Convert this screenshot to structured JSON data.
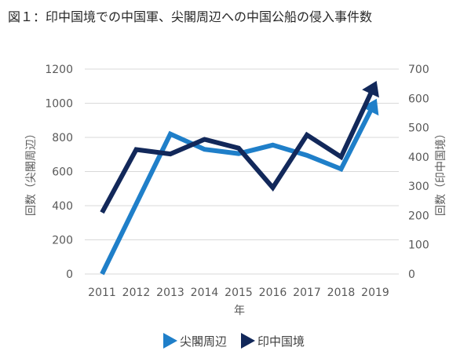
{
  "title": "図１：印中国境での中国軍、尖閣周辺への中国公船の侵入事件数",
  "chart_data": {
    "type": "line",
    "title": "図１：印中国境での中国軍、尖閣周辺への中国公船の侵入事件数",
    "xlabel": "年",
    "ylabel_left": "回数（尖閣周辺）",
    "ylabel_right": "回数（印中国境）",
    "x": [
      "2011",
      "2012",
      "2013",
      "2014",
      "2015",
      "2016",
      "2017",
      "2018",
      "2019"
    ],
    "ylim_left": [
      0,
      1200
    ],
    "ylim_right": [
      0,
      700
    ],
    "yticks_left": [
      "0",
      "200",
      "400",
      "600",
      "800",
      "1000",
      "1200"
    ],
    "yticks_right": [
      "0",
      "100",
      "200",
      "300",
      "400",
      "500",
      "600",
      "700"
    ],
    "grid": true,
    "legend_position": "bottom",
    "series": [
      {
        "name": "尖閣周辺",
        "axis": "left",
        "color": "#1f7fc9",
        "values": [
          0,
          410,
          820,
          730,
          705,
          755,
          695,
          615,
          1010
        ]
      },
      {
        "name": "印中国境",
        "axis": "right",
        "color": "#12285a",
        "values": [
          210,
          425,
          410,
          460,
          430,
          295,
          475,
          400,
          650
        ]
      }
    ]
  }
}
